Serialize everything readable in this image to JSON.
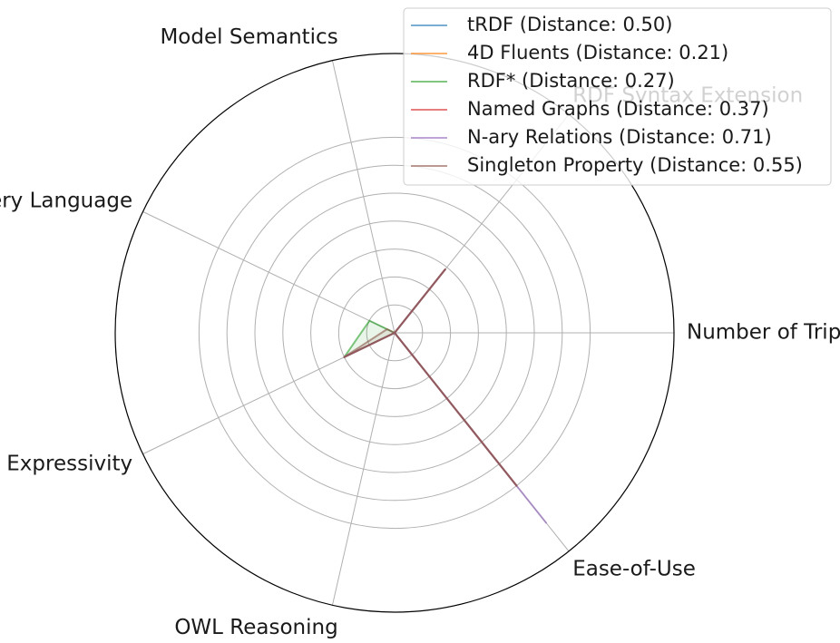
{
  "chart_data": {
    "type": "radar",
    "axes": [
      "Number of Triples",
      "RDF Syntax Extension",
      "Model Semantics",
      "Query Language",
      "Temporal Expressivity",
      "OWL Reasoning",
      "Ease-of-Use"
    ],
    "rmax": 1.0,
    "grid_rings": [
      0.1,
      0.2,
      0.3,
      0.4,
      0.5,
      0.6,
      0.7
    ],
    "grid": true,
    "legend_position": "top-right",
    "series": [
      {
        "name": "tRDF (Distance: 0.50)",
        "color": "#1f77b4",
        "values": [
          0,
          0.29,
          0,
          0,
          0.2,
          0,
          0.7
        ]
      },
      {
        "name": "4D Fluents (Distance: 0.21)",
        "color": "#ff7f0e",
        "values": [
          0,
          0.29,
          0,
          0,
          0.2,
          0,
          0.7
        ]
      },
      {
        "name": "RDF* (Distance: 0.27)",
        "color": "#2ca02c",
        "values": [
          0,
          0.29,
          0,
          0.1,
          0.2,
          0,
          0.7
        ]
      },
      {
        "name": "Named Graphs (Distance: 0.37)",
        "color": "#d62728",
        "values": [
          0,
          0.29,
          0,
          0,
          0.2,
          0,
          0.7
        ]
      },
      {
        "name": "N-ary Relations (Distance: 0.71)",
        "color": "#9467bd",
        "values": [
          0,
          0.29,
          0,
          0,
          0.2,
          0,
          0.87
        ]
      },
      {
        "name": "Singleton Property (Distance: 0.55)",
        "color": "#8c564b",
        "values": [
          0,
          0.29,
          0,
          0.03,
          0.2,
          0,
          0.7
        ]
      }
    ]
  }
}
